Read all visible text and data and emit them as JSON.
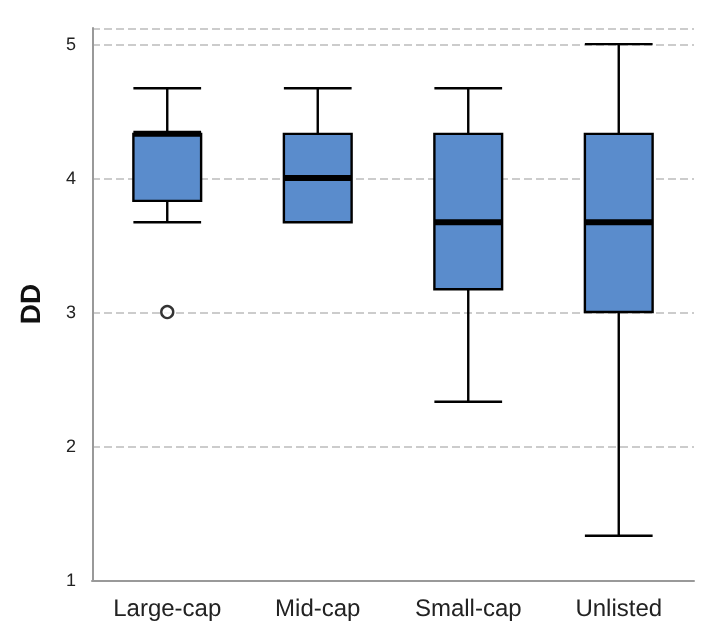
{
  "chart_data": {
    "type": "box",
    "ylabel": "DD",
    "categories": [
      "Large-cap",
      "Mid-cap",
      "Small-cap",
      "Unlisted"
    ],
    "color": "#5a8ccc",
    "boxes": [
      {
        "low": 3.67,
        "q1": 3.83,
        "median": 4.33,
        "q3": 4.33,
        "high": 4.67,
        "outliers": [
          3.0
        ]
      },
      {
        "low": 3.67,
        "q1": 3.67,
        "median": 4.0,
        "q3": 4.33,
        "high": 4.67
      },
      {
        "low": 2.33,
        "q1": 3.17,
        "median": 3.67,
        "q3": 4.33,
        "high": 4.67
      },
      {
        "low": 1.33,
        "q1": 3.0,
        "median": 3.67,
        "q3": 4.33,
        "high": 5.0
      }
    ],
    "ylim": [
      1,
      5.12
    ],
    "yticks": [
      1,
      2,
      3,
      4,
      5
    ],
    "grid": "y"
  }
}
